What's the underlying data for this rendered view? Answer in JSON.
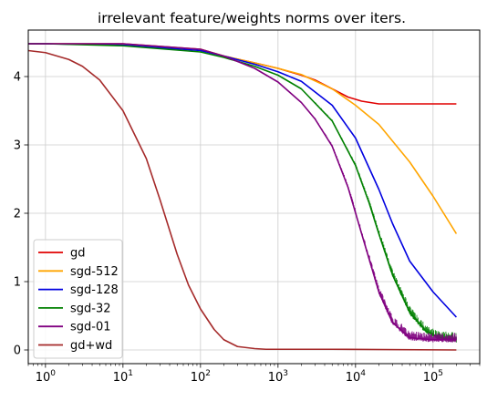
{
  "chart_data": {
    "type": "line",
    "title": "irrelevant feature/weights norms over iters.",
    "xlabel": "",
    "ylabel": "",
    "x_scale": "log",
    "xlim": [
      0.6,
      400000
    ],
    "ylim": [
      -0.2,
      4.68
    ],
    "grid": true,
    "legend_placement": "lower-left",
    "x_ticks": [
      {
        "value": 1,
        "base": "10",
        "exp": "0"
      },
      {
        "value": 10,
        "base": "10",
        "exp": "1"
      },
      {
        "value": 100,
        "base": "10",
        "exp": "2"
      },
      {
        "value": 1000,
        "base": "10",
        "exp": "3"
      },
      {
        "value": 10000,
        "base": "10",
        "exp": "4"
      },
      {
        "value": 100000,
        "base": "10",
        "exp": "5"
      }
    ],
    "y_ticks": [
      {
        "value": 0,
        "label": "0"
      },
      {
        "value": 1,
        "label": "1"
      },
      {
        "value": 2,
        "label": "2"
      },
      {
        "value": 3,
        "label": "3"
      },
      {
        "value": 4,
        "label": "4"
      }
    ],
    "series": [
      {
        "name": "gd",
        "color": "#e00000",
        "noisy": false,
        "x": [
          0.6,
          1,
          10,
          100,
          200,
          500,
          1000,
          2000,
          3000,
          5000,
          8000,
          12000,
          20000,
          50000,
          100000,
          200000
        ],
        "y": [
          4.48,
          4.48,
          4.48,
          4.4,
          4.3,
          4.2,
          4.12,
          4.02,
          3.95,
          3.82,
          3.7,
          3.64,
          3.6,
          3.6,
          3.6,
          3.6
        ]
      },
      {
        "name": "sgd-512",
        "color": "#ffa500",
        "noisy": false,
        "x": [
          0.6,
          1,
          10,
          100,
          200,
          500,
          1000,
          2000,
          5000,
          10000,
          20000,
          50000,
          100000,
          200000
        ],
        "y": [
          4.48,
          4.48,
          4.47,
          4.4,
          4.3,
          4.2,
          4.12,
          4.03,
          3.82,
          3.58,
          3.3,
          2.75,
          2.25,
          1.7
        ]
      },
      {
        "name": "sgd-128",
        "color": "#0000e0",
        "noisy": false,
        "x": [
          0.6,
          1,
          10,
          100,
          200,
          500,
          1000,
          2000,
          5000,
          10000,
          20000,
          30000,
          50000,
          100000,
          200000
        ],
        "y": [
          4.48,
          4.48,
          4.46,
          4.38,
          4.3,
          4.18,
          4.07,
          3.93,
          3.58,
          3.1,
          2.35,
          1.85,
          1.3,
          0.85,
          0.48
        ]
      },
      {
        "name": "sgd-32",
        "color": "#008000",
        "noisy": true,
        "x": [
          0.6,
          1,
          10,
          100,
          200,
          500,
          1000,
          2000,
          5000,
          10000,
          15000,
          20000,
          30000,
          50000,
          80000,
          120000,
          200000
        ],
        "y": [
          4.48,
          4.48,
          4.45,
          4.36,
          4.28,
          4.15,
          4.02,
          3.82,
          3.35,
          2.7,
          2.15,
          1.7,
          1.1,
          0.55,
          0.28,
          0.18,
          0.15
        ]
      },
      {
        "name": "sgd-01",
        "color": "#800080",
        "noisy": true,
        "x": [
          0.6,
          1,
          10,
          100,
          200,
          500,
          1000,
          2000,
          3000,
          5000,
          8000,
          12000,
          20000,
          30000,
          50000,
          100000,
          200000
        ],
        "y": [
          4.48,
          4.48,
          4.48,
          4.4,
          4.3,
          4.12,
          3.92,
          3.62,
          3.38,
          2.98,
          2.38,
          1.7,
          0.85,
          0.4,
          0.18,
          0.15,
          0.15
        ]
      },
      {
        "name": "gd+wd",
        "color": "#a52a2a",
        "noisy": false,
        "x": [
          0.6,
          1,
          2,
          3,
          5,
          10,
          20,
          30,
          50,
          70,
          100,
          150,
          200,
          300,
          500,
          700,
          1000,
          2000,
          5000,
          200000
        ],
        "y": [
          4.38,
          4.35,
          4.25,
          4.15,
          3.95,
          3.5,
          2.8,
          2.2,
          1.4,
          0.95,
          0.6,
          0.3,
          0.15,
          0.05,
          0.02,
          0.01,
          0.01,
          0.01,
          0.01,
          0.0
        ]
      }
    ]
  }
}
